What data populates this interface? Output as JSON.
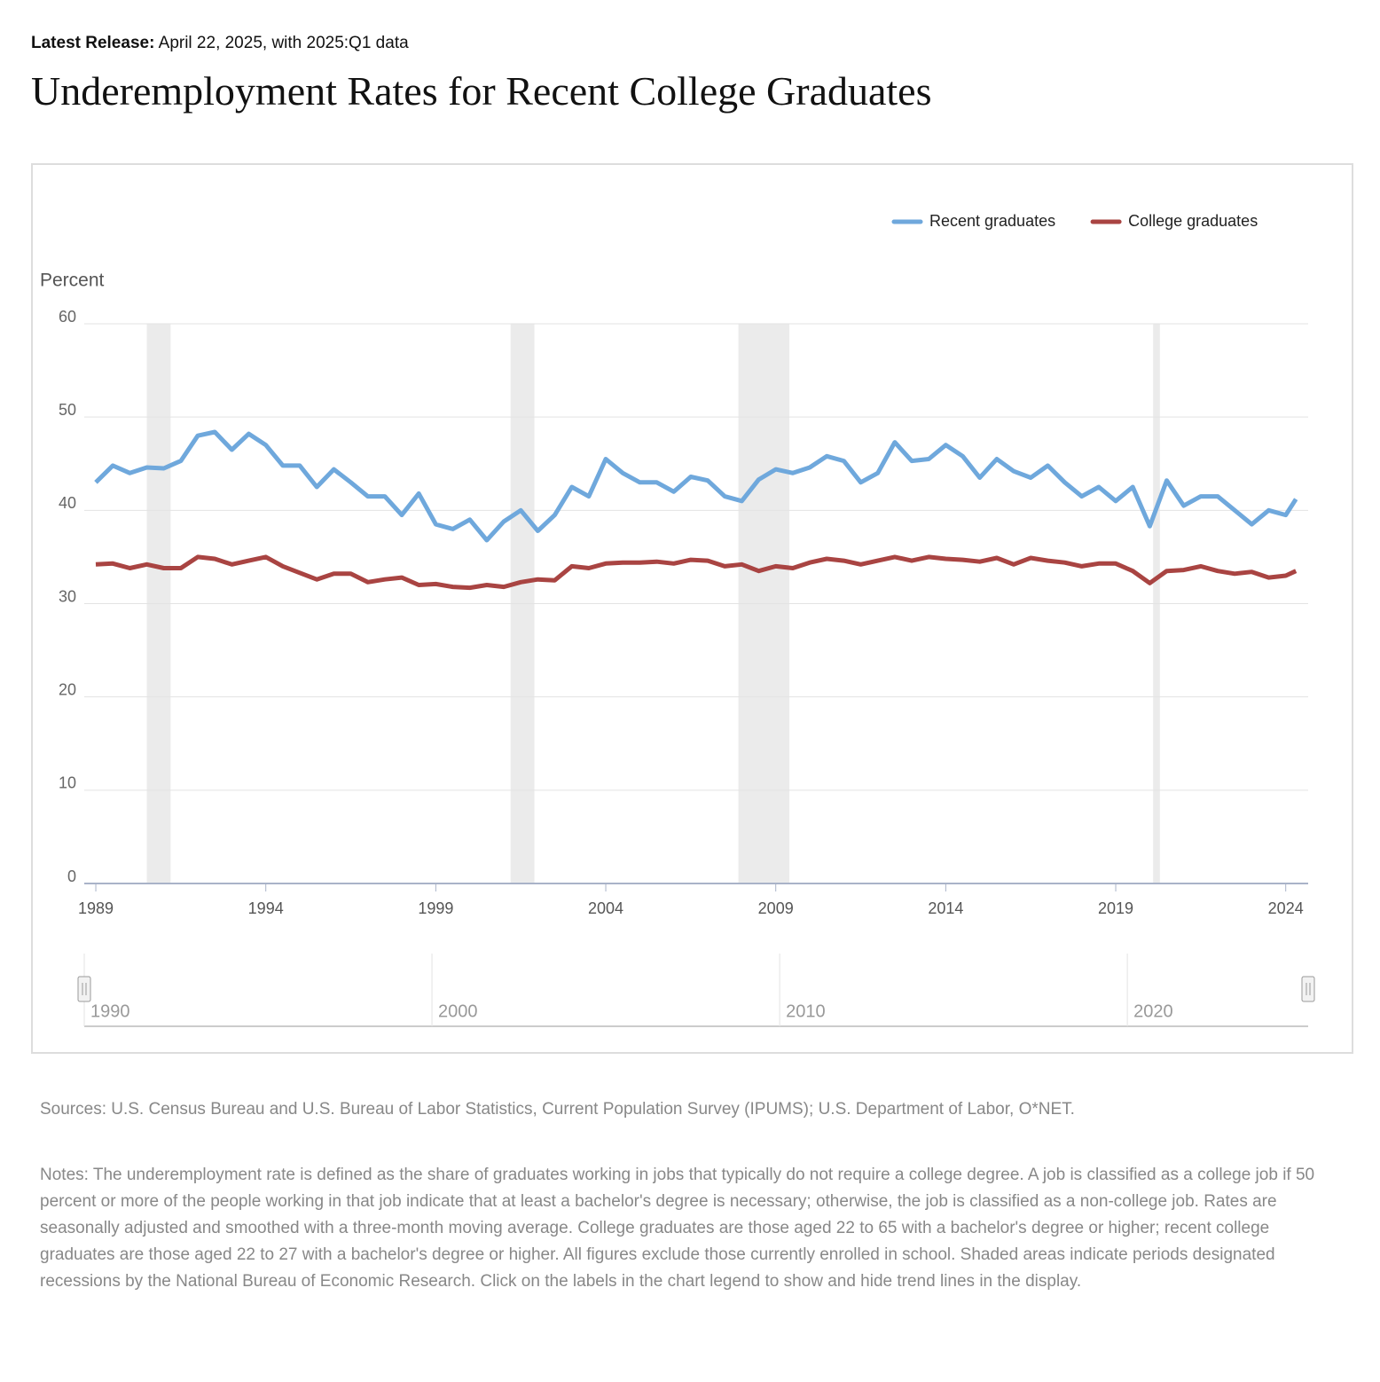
{
  "header": {
    "release_label": "Latest Release:",
    "release_text": "April 22, 2025, with 2025:Q1 data",
    "title": "Underemployment Rates for Recent College Graduates"
  },
  "chart_data": {
    "type": "line",
    "y_label": "Percent",
    "x": [
      1989,
      1989.5,
      1990,
      1990.5,
      1991,
      1991.5,
      1992,
      1992.5,
      1993,
      1993.5,
      1994,
      1994.5,
      1995,
      1995.5,
      1996,
      1996.5,
      1997,
      1997.5,
      1998,
      1998.5,
      1999,
      1999.5,
      2000,
      2000.5,
      2001,
      2001.5,
      2002,
      2002.5,
      2003,
      2003.5,
      2004,
      2004.5,
      2005,
      2005.5,
      2006,
      2006.5,
      2007,
      2007.5,
      2008,
      2008.5,
      2009,
      2009.5,
      2010,
      2010.5,
      2011,
      2011.5,
      2012,
      2012.5,
      2013,
      2013.5,
      2014,
      2014.5,
      2015,
      2015.5,
      2016,
      2016.5,
      2017,
      2017.5,
      2018,
      2018.5,
      2019,
      2019.5,
      2020,
      2020.5,
      2021,
      2021.5,
      2022,
      2022.5,
      2023,
      2023.5,
      2024,
      2024.3
    ],
    "series": [
      {
        "name": "Recent graduates",
        "color": "#6fa8dc",
        "values": [
          43,
          44.8,
          44,
          44.6,
          44.5,
          45.3,
          48,
          48.4,
          46.5,
          48.2,
          47,
          44.8,
          44.8,
          42.5,
          44.4,
          43,
          41.5,
          41.5,
          39.5,
          41.8,
          38.5,
          38,
          39,
          36.8,
          38.8,
          40,
          37.8,
          39.5,
          42.5,
          41.5,
          45.5,
          44,
          43,
          43,
          42,
          43.6,
          43.2,
          41.5,
          41,
          43.3,
          44.4,
          44,
          44.6,
          45.8,
          45.3,
          43,
          44,
          47.3,
          45.3,
          45.5,
          47,
          45.8,
          43.5,
          45.5,
          44.2,
          43.5,
          44.8,
          43,
          41.5,
          42.5,
          41,
          42.5,
          38.3,
          43.2,
          40.5,
          41.5,
          41.5,
          40,
          38.5,
          40,
          39.5,
          41.2
        ]
      },
      {
        "name": "College graduates",
        "color": "#a94442",
        "values": [
          34.2,
          34.3,
          33.8,
          34.2,
          33.8,
          33.8,
          35,
          34.8,
          34.2,
          34.6,
          35,
          34,
          33.3,
          32.6,
          33.2,
          33.2,
          32.3,
          32.6,
          32.8,
          32,
          32.1,
          31.8,
          31.7,
          32,
          31.8,
          32.3,
          32.6,
          32.5,
          34,
          33.8,
          34.3,
          34.4,
          34.4,
          34.5,
          34.3,
          34.7,
          34.6,
          34,
          34.2,
          33.5,
          34,
          33.8,
          34.4,
          34.8,
          34.6,
          34.2,
          34.6,
          35,
          34.6,
          35,
          34.8,
          34.7,
          34.5,
          34.9,
          34.2,
          34.9,
          34.6,
          34.4,
          34,
          34.3,
          34.3,
          33.5,
          32.2,
          33.5,
          33.6,
          34,
          33.5,
          33.2,
          33.4,
          32.8,
          33,
          33.5
        ]
      }
    ],
    "recessions": [
      [
        1990.5,
        1991.2
      ],
      [
        2001.2,
        2001.9
      ],
      [
        2007.9,
        2009.4
      ],
      [
        2020.1,
        2020.3
      ]
    ],
    "xlim": [
      1988.66,
      2024.66
    ],
    "xticks": [
      1989,
      1994,
      1999,
      2004,
      2009,
      2014,
      2019,
      2024
    ],
    "ylim": [
      0,
      60
    ],
    "yticks": [
      0,
      10,
      20,
      30,
      40,
      50,
      60
    ],
    "grid": true,
    "legend": "top-right",
    "navigator": {
      "xlim": [
        1990,
        2025.2
      ],
      "xticks": [
        1990,
        2000,
        2010,
        2020
      ]
    }
  },
  "footer": {
    "sources": "Sources: U.S. Census Bureau and U.S. Bureau of Labor Statistics, Current Population Survey (IPUMS); U.S. Department of Labor, O*NET.",
    "notes": "Notes: The underemployment rate is defined as the share of graduates working in jobs that typically do not require a college degree. A job is classified as a college job if 50 percent or more of the people working in that job indicate that at least a bachelor's degree is necessary; otherwise, the job is classified as a non-college job. Rates are seasonally adjusted and smoothed with a three-month moving average. College graduates are those aged 22 to 65 with a bachelor's degree or higher; recent college graduates are those aged 22 to 27 with a bachelor's degree or higher. All figures exclude those currently enrolled in school. Shaded areas indicate periods designated recessions by the National Bureau of Economic Research. Click on the labels in the chart legend to show and hide trend lines in the display."
  }
}
